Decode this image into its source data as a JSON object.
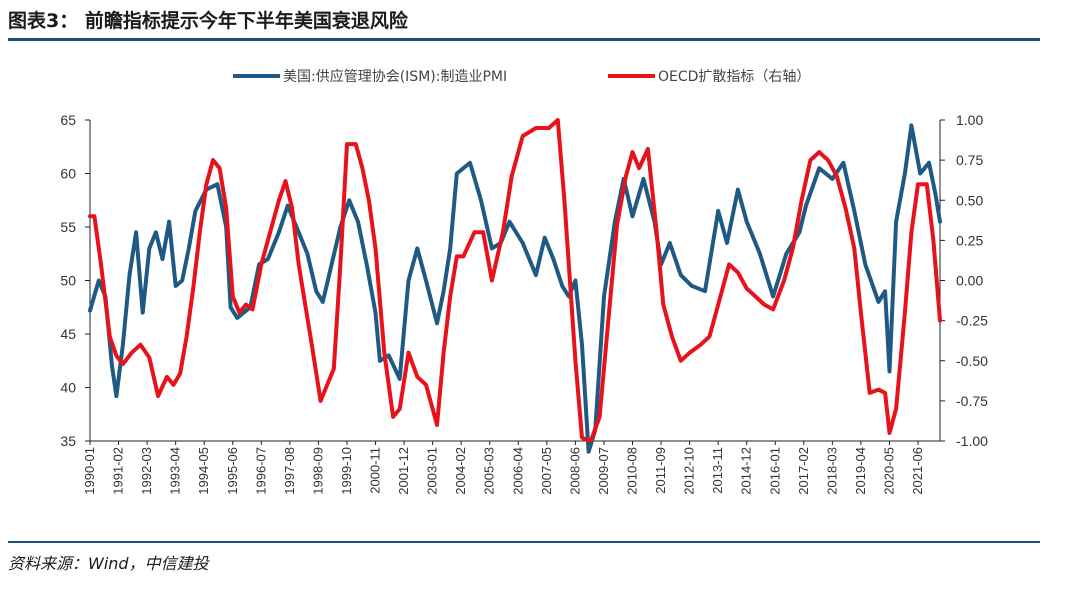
{
  "header": {
    "title": "图表3： 前瞻指标提示今年下半年美国衰退风险"
  },
  "footer": {
    "source": "资料来源：Wind，中信建投"
  },
  "chart_data": {
    "type": "line",
    "title": "图表3： 前瞻指标提示今年下半年美国衰退风险",
    "x_start": "1990-01",
    "x_end": "2022-04",
    "x_tick_labels": [
      "1990-01",
      "1991-02",
      "1992-03",
      "1993-04",
      "1994-05",
      "1995-06",
      "1996-07",
      "1997-08",
      "1998-09",
      "1999-10",
      "2000-11",
      "2001-12",
      "2003-01",
      "2004-02",
      "2005-03",
      "2006-04",
      "2007-05",
      "2008-06",
      "2009-07",
      "2010-08",
      "2011-09",
      "2012-10",
      "2013-11",
      "2014-12",
      "2016-01",
      "2017-02",
      "2018-03",
      "2019-04",
      "2020-05",
      "2021-06"
    ],
    "y_left": {
      "min": 35,
      "max": 65,
      "ticks": [
        35,
        40,
        45,
        50,
        55,
        60,
        65
      ]
    },
    "y_right": {
      "min": -1.0,
      "max": 1.0,
      "ticks": [
        "-1.00",
        "-0.75",
        "-0.50",
        "-0.25",
        "0.00",
        "0.25",
        "0.50",
        "0.75",
        "1.00"
      ]
    },
    "legend_position": "top",
    "series": [
      {
        "name": "美国:供应管理协会(ISM):制造业PMI",
        "axis": "left",
        "color": "#1f5a85",
        "points": [
          [
            "1990-01",
            47.2
          ],
          [
            "1990-05",
            50.0
          ],
          [
            "1990-08",
            48.5
          ],
          [
            "1990-11",
            42.0
          ],
          [
            "1991-01",
            39.2
          ],
          [
            "1991-04",
            44.0
          ],
          [
            "1991-07",
            50.5
          ],
          [
            "1991-10",
            54.5
          ],
          [
            "1992-01",
            47.0
          ],
          [
            "1992-04",
            53.0
          ],
          [
            "1992-07",
            54.5
          ],
          [
            "1992-10",
            52.0
          ],
          [
            "1993-01",
            55.5
          ],
          [
            "1993-04",
            49.5
          ],
          [
            "1993-07",
            50.0
          ],
          [
            "1993-10",
            53.0
          ],
          [
            "1994-01",
            56.5
          ],
          [
            "1994-06",
            58.5
          ],
          [
            "1994-11",
            59.0
          ],
          [
            "1995-03",
            55.0
          ],
          [
            "1995-05",
            47.5
          ],
          [
            "1995-08",
            46.5
          ],
          [
            "1995-11",
            47.0
          ],
          [
            "1996-02",
            47.5
          ],
          [
            "1996-06",
            51.5
          ],
          [
            "1996-10",
            52.0
          ],
          [
            "1997-03",
            54.5
          ],
          [
            "1997-07",
            57.0
          ],
          [
            "1997-11",
            55.0
          ],
          [
            "1998-04",
            52.5
          ],
          [
            "1998-08",
            49.0
          ],
          [
            "1998-11",
            48.0
          ],
          [
            "1999-03",
            51.5
          ],
          [
            "1999-07",
            55.0
          ],
          [
            "1999-11",
            57.5
          ],
          [
            "2000-03",
            55.5
          ],
          [
            "2000-07",
            51.5
          ],
          [
            "2000-11",
            47.0
          ],
          [
            "2001-01",
            42.5
          ],
          [
            "2001-05",
            43.0
          ],
          [
            "2001-10",
            40.8
          ],
          [
            "2002-02",
            50.0
          ],
          [
            "2002-06",
            53.0
          ],
          [
            "2002-10",
            50.0
          ],
          [
            "2003-03",
            46.0
          ],
          [
            "2003-06",
            49.0
          ],
          [
            "2003-09",
            53.0
          ],
          [
            "2003-12",
            60.0
          ],
          [
            "2004-06",
            61.0
          ],
          [
            "2004-11",
            57.5
          ],
          [
            "2005-04",
            53.0
          ],
          [
            "2005-08",
            53.5
          ],
          [
            "2005-12",
            55.5
          ],
          [
            "2006-06",
            53.5
          ],
          [
            "2006-12",
            50.5
          ],
          [
            "2007-04",
            54.0
          ],
          [
            "2007-08",
            52.0
          ],
          [
            "2007-12",
            49.5
          ],
          [
            "2008-03",
            48.5
          ],
          [
            "2008-06",
            50.0
          ],
          [
            "2008-09",
            44.0
          ],
          [
            "2008-12",
            34.0
          ],
          [
            "2009-03",
            36.0
          ],
          [
            "2009-07",
            48.5
          ],
          [
            "2009-12",
            55.5
          ],
          [
            "2010-04",
            59.5
          ],
          [
            "2010-08",
            56.0
          ],
          [
            "2011-01",
            59.5
          ],
          [
            "2011-06",
            55.5
          ],
          [
            "2011-09",
            51.5
          ],
          [
            "2012-01",
            53.5
          ],
          [
            "2012-06",
            50.5
          ],
          [
            "2012-11",
            49.5
          ],
          [
            "2013-05",
            49.0
          ],
          [
            "2013-11",
            56.5
          ],
          [
            "2014-03",
            53.5
          ],
          [
            "2014-08",
            58.5
          ],
          [
            "2014-12",
            55.5
          ],
          [
            "2015-06",
            52.5
          ],
          [
            "2015-12",
            48.5
          ],
          [
            "2016-06",
            52.5
          ],
          [
            "2016-12",
            54.5
          ],
          [
            "2017-03",
            57.0
          ],
          [
            "2017-09",
            60.5
          ],
          [
            "2018-03",
            59.5
          ],
          [
            "2018-08",
            61.0
          ],
          [
            "2019-01",
            56.5
          ],
          [
            "2019-06",
            51.5
          ],
          [
            "2019-12",
            48.0
          ],
          [
            "2020-03",
            49.0
          ],
          [
            "2020-05",
            41.5
          ],
          [
            "2020-08",
            55.5
          ],
          [
            "2020-12",
            60.0
          ],
          [
            "2021-03",
            64.5
          ],
          [
            "2021-07",
            60.0
          ],
          [
            "2021-11",
            61.0
          ],
          [
            "2022-02",
            58.0
          ],
          [
            "2022-04",
            55.5
          ]
        ]
      },
      {
        "name": "OECD扩散指标（右轴）",
        "axis": "right",
        "color": "#e8121a",
        "points": [
          [
            "1990-01",
            0.4
          ],
          [
            "1990-03",
            0.4
          ],
          [
            "1990-06",
            0.1
          ],
          [
            "1990-10",
            -0.35
          ],
          [
            "1991-01",
            -0.47
          ],
          [
            "1991-04",
            -0.52
          ],
          [
            "1991-08",
            -0.45
          ],
          [
            "1991-12",
            -0.4
          ],
          [
            "1992-04",
            -0.48
          ],
          [
            "1992-08",
            -0.72
          ],
          [
            "1992-12",
            -0.6
          ],
          [
            "1993-03",
            -0.65
          ],
          [
            "1993-06",
            -0.58
          ],
          [
            "1993-09",
            -0.35
          ],
          [
            "1993-12",
            -0.05
          ],
          [
            "1994-03",
            0.3
          ],
          [
            "1994-06",
            0.6
          ],
          [
            "1994-09",
            0.75
          ],
          [
            "1994-12",
            0.7
          ],
          [
            "1995-03",
            0.45
          ],
          [
            "1995-06",
            -0.1
          ],
          [
            "1995-09",
            -0.2
          ],
          [
            "1995-12",
            -0.15
          ],
          [
            "1996-03",
            -0.18
          ],
          [
            "1996-07",
            0.1
          ],
          [
            "1996-11",
            0.3
          ],
          [
            "1997-03",
            0.5
          ],
          [
            "1997-06",
            0.62
          ],
          [
            "1997-09",
            0.45
          ],
          [
            "1997-12",
            0.1
          ],
          [
            "1998-03",
            -0.15
          ],
          [
            "1998-06",
            -0.4
          ],
          [
            "1998-10",
            -0.75
          ],
          [
            "1999-01",
            -0.65
          ],
          [
            "1999-04",
            -0.55
          ],
          [
            "1999-07",
            0.1
          ],
          [
            "1999-10",
            0.85
          ],
          [
            "2000-02",
            0.85
          ],
          [
            "2000-05",
            0.7
          ],
          [
            "2000-08",
            0.5
          ],
          [
            "2000-11",
            0.2
          ],
          [
            "2001-03",
            -0.45
          ],
          [
            "2001-07",
            -0.85
          ],
          [
            "2001-10",
            -0.8
          ],
          [
            "2002-02",
            -0.45
          ],
          [
            "2002-06",
            -0.6
          ],
          [
            "2002-10",
            -0.65
          ],
          [
            "2003-03",
            -0.9
          ],
          [
            "2003-06",
            -0.45
          ],
          [
            "2003-09",
            -0.1
          ],
          [
            "2003-12",
            0.15
          ],
          [
            "2004-03",
            0.15
          ],
          [
            "2004-08",
            0.3
          ],
          [
            "2004-12",
            0.3
          ],
          [
            "2005-04",
            0.0
          ],
          [
            "2005-09",
            0.3
          ],
          [
            "2006-01",
            0.65
          ],
          [
            "2006-06",
            0.9
          ],
          [
            "2006-12",
            0.95
          ],
          [
            "2007-06",
            0.95
          ],
          [
            "2007-10",
            1.0
          ],
          [
            "2008-01",
            0.5
          ],
          [
            "2008-06",
            -0.5
          ],
          [
            "2008-09",
            -0.98
          ],
          [
            "2009-01",
            -1.0
          ],
          [
            "2009-05",
            -0.85
          ],
          [
            "2009-09",
            -0.25
          ],
          [
            "2010-01",
            0.35
          ],
          [
            "2010-05",
            0.65
          ],
          [
            "2010-08",
            0.8
          ],
          [
            "2010-11",
            0.7
          ],
          [
            "2011-03",
            0.82
          ],
          [
            "2011-07",
            0.3
          ],
          [
            "2011-10",
            -0.15
          ],
          [
            "2012-02",
            -0.35
          ],
          [
            "2012-06",
            -0.5
          ],
          [
            "2012-10",
            -0.45
          ],
          [
            "2013-03",
            -0.4
          ],
          [
            "2013-07",
            -0.35
          ],
          [
            "2013-11",
            -0.15
          ],
          [
            "2014-04",
            0.1
          ],
          [
            "2014-08",
            0.05
          ],
          [
            "2014-12",
            -0.05
          ],
          [
            "2015-04",
            -0.1
          ],
          [
            "2015-08",
            -0.15
          ],
          [
            "2015-12",
            -0.18
          ],
          [
            "2016-05",
            0.0
          ],
          [
            "2016-09",
            0.2
          ],
          [
            "2017-01",
            0.5
          ],
          [
            "2017-05",
            0.75
          ],
          [
            "2017-09",
            0.8
          ],
          [
            "2018-01",
            0.75
          ],
          [
            "2018-05",
            0.65
          ],
          [
            "2018-09",
            0.45
          ],
          [
            "2019-01",
            0.2
          ],
          [
            "2019-04",
            -0.2
          ],
          [
            "2019-08",
            -0.7
          ],
          [
            "2019-12",
            -0.68
          ],
          [
            "2020-03",
            -0.7
          ],
          [
            "2020-05",
            -0.95
          ],
          [
            "2020-08",
            -0.8
          ],
          [
            "2020-12",
            -0.2
          ],
          [
            "2021-03",
            0.3
          ],
          [
            "2021-06",
            0.6
          ],
          [
            "2021-10",
            0.6
          ],
          [
            "2022-01",
            0.25
          ],
          [
            "2022-04",
            -0.25
          ]
        ]
      }
    ]
  }
}
